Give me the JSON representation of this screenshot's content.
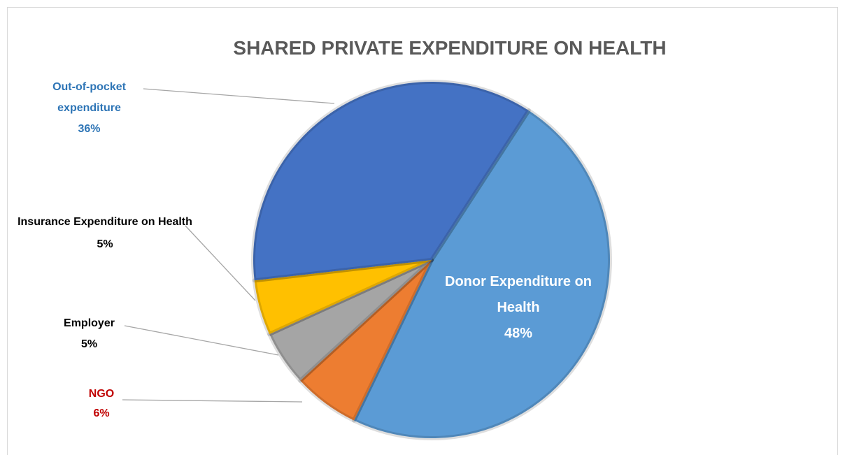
{
  "chart_data": {
    "type": "pie",
    "title": "SHARED PRIVATE EXPENDITURE ON HEALTH",
    "categories": [
      "Donor Expenditure on Health",
      "NGO",
      "Employer",
      "Insurance Expenditure on Health",
      "Out-of-pocket expenditure"
    ],
    "values": [
      48,
      6,
      5,
      5,
      36
    ],
    "value_labels": [
      "48%",
      "6%",
      "5%",
      "5%",
      "36%"
    ],
    "colors": [
      "#5b9bd5",
      "#ed7d31",
      "#a5a5a5",
      "#ffc000",
      "#4472c4"
    ],
    "label_colors": [
      "#ffffff",
      "#c00000",
      "#000000",
      "#000000",
      "#2e75b6"
    ]
  }
}
